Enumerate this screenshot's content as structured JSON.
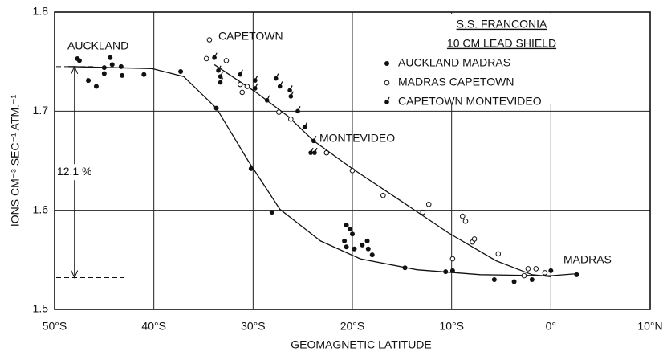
{
  "chart_data": {
    "type": "scatter",
    "title": "S.S. FRANCONIA",
    "subtitle": "10 CM LEAD SHIELD",
    "x_label": "GEOMAGNETIC LATITUDE",
    "y_label": "IONS CM⁻³ SEC⁻¹ ATM.⁻¹",
    "xlim": [
      -50,
      10
    ],
    "ylim": [
      1.5,
      1.8
    ],
    "xticks": [
      {
        "value": -50,
        "label": "50°S"
      },
      {
        "value": -40,
        "label": "40°S"
      },
      {
        "value": -30,
        "label": "30°S"
      },
      {
        "value": -20,
        "label": "20°S"
      },
      {
        "value": -10,
        "label": "10°S"
      },
      {
        "value": 0,
        "label": "0°"
      },
      {
        "value": 10,
        "label": "10°N"
      }
    ],
    "yticks": [
      1.5,
      1.6,
      1.7,
      1.8
    ],
    "grid": true,
    "legend": "upper right",
    "series": [
      {
        "name": "AUCKLAND MADRAS",
        "marker": "filled",
        "color": "#111111",
        "x": [
          -47.7,
          -47.5,
          -46.6,
          -45.8,
          -45.0,
          -45.0,
          -44.4,
          -44.2,
          -43.3,
          -43.2,
          -41.0,
          -37.3,
          -33.7,
          -30.2,
          -28.1,
          -20.6,
          -20.2,
          -20.0,
          -20.8,
          -20.6,
          -19.8,
          -19.0,
          -18.5,
          -18.4,
          -18.0,
          -14.7,
          -10.6,
          -9.9,
          -5.7,
          -3.7,
          -1.9,
          0.0,
          2.6
        ],
        "values": [
          1.753,
          1.751,
          1.731,
          1.725,
          1.738,
          1.744,
          1.754,
          1.747,
          1.745,
          1.736,
          1.737,
          1.74,
          1.703,
          1.642,
          1.598,
          1.585,
          1.581,
          1.576,
          1.569,
          1.563,
          1.561,
          1.565,
          1.569,
          1.561,
          1.555,
          1.542,
          1.538,
          1.539,
          1.53,
          1.528,
          1.53,
          1.539,
          1.535
        ]
      },
      {
        "name": "MADRAS CAPETOWN",
        "marker": "open",
        "color": "#111111",
        "x": [
          -34.4,
          -34.7,
          -32.7,
          -31.3,
          -31.1,
          -30.6,
          -27.4,
          -26.2,
          -22.6,
          -20.0,
          -16.9,
          -12.9,
          -12.3,
          -8.9,
          -8.6,
          -7.9,
          -7.7,
          -9.9,
          -5.3,
          -2.3,
          -1.5,
          -2.7,
          -0.6
        ],
        "values": [
          1.772,
          1.753,
          1.751,
          1.727,
          1.719,
          1.725,
          1.699,
          1.692,
          1.658,
          1.64,
          1.615,
          1.598,
          1.606,
          1.594,
          1.589,
          1.568,
          1.571,
          1.551,
          1.556,
          1.541,
          1.541,
          1.534,
          1.537
        ]
      },
      {
        "name": "CAPETOWN MONTEVIDEO",
        "marker": "tick",
        "color": "#111111",
        "x": [
          -33.9,
          -33.5,
          -33.3,
          -33.3,
          -31.3,
          -29.8,
          -29.8,
          -28.6,
          -27.7,
          -27.3,
          -26.2,
          -26.3,
          -25.5,
          -24.8,
          -23.9,
          -23.8,
          -24.2
        ],
        "values": [
          1.754,
          1.741,
          1.735,
          1.729,
          1.737,
          1.731,
          1.723,
          1.711,
          1.733,
          1.725,
          1.715,
          1.721,
          1.7,
          1.684,
          1.67,
          1.658,
          1.658
        ]
      }
    ],
    "curves": [
      {
        "x": [
          -48.6,
          -40.2,
          -37.0,
          -33.7,
          -30.5,
          -27.3,
          -23.2,
          -19.2,
          -13.5,
          -7.1,
          0.0,
          2.6
        ],
        "values": [
          1.745,
          1.743,
          1.735,
          1.703,
          1.65,
          1.601,
          1.569,
          1.551,
          1.54,
          1.535,
          1.534,
          1.536
        ]
      },
      {
        "x": [
          -33.9,
          -29.7,
          -26.5,
          -23.9,
          -20.0,
          -15.2,
          -10.3,
          -5.5,
          -1.9,
          0.0
        ],
        "values": [
          1.747,
          1.719,
          1.695,
          1.67,
          1.642,
          1.61,
          1.577,
          1.549,
          1.535,
          1.533
        ]
      }
    ],
    "reference_lines": [
      1.745,
      1.532
    ],
    "difference_label": "12.1 %",
    "annotations": [
      "AUCKLAND",
      "CAPETOWN",
      "MONTEVIDEO",
      "MADRAS"
    ]
  }
}
